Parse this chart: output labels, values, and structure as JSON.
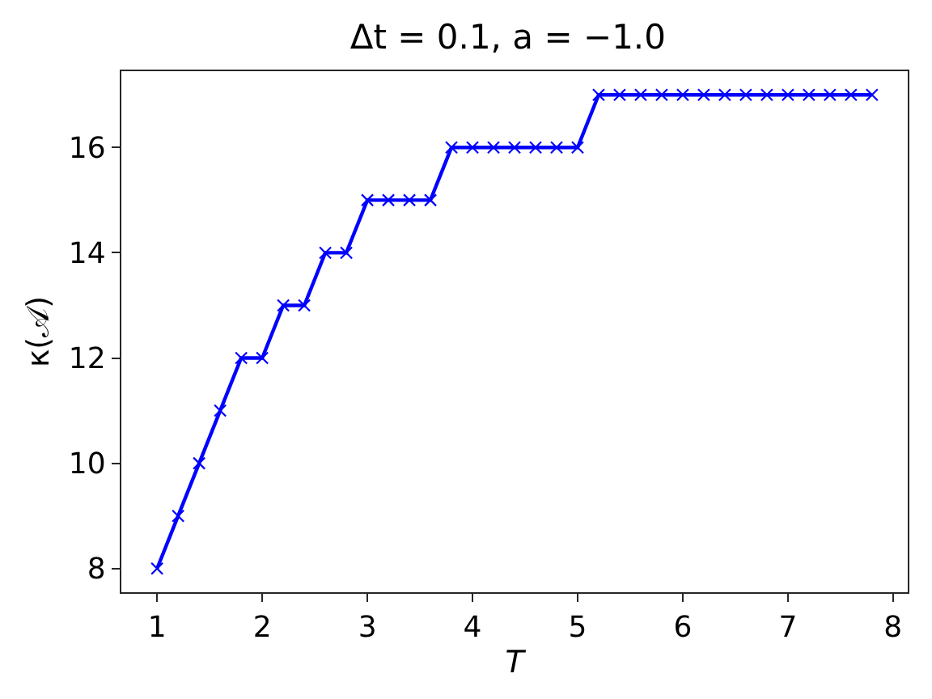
{
  "chart_data": {
    "type": "line",
    "title": "Δt = 0.1, a = −1.0",
    "xlabel": "T",
    "ylabel": "κ(𝒜)",
    "x": [
      1.0,
      1.2,
      1.4,
      1.6,
      1.8,
      2.0,
      2.2,
      2.4,
      2.6,
      2.8,
      3.0,
      3.2,
      3.4,
      3.6,
      3.8,
      4.0,
      4.2,
      4.4,
      4.6,
      4.8,
      5.0,
      5.2,
      5.4,
      5.6,
      5.8,
      6.0,
      6.2,
      6.4,
      6.6,
      6.8,
      7.0,
      7.2,
      7.4,
      7.6,
      7.8
    ],
    "series": [
      {
        "color": "#0000ff",
        "values": [
          8,
          9,
          10,
          11,
          12,
          12,
          13,
          13,
          14,
          14,
          15,
          15,
          15,
          15,
          16,
          16,
          16,
          16,
          16,
          16,
          16,
          17,
          17,
          17,
          17,
          17,
          17,
          17,
          17,
          17,
          17,
          17,
          17,
          17,
          17
        ]
      }
    ],
    "xlim": [
      0.66,
      8.14
    ],
    "xticks": [
      1,
      2,
      3,
      4,
      5,
      6,
      7,
      8
    ],
    "ylim": [
      7.55,
      17.45
    ],
    "yticks": [
      8,
      10,
      12,
      14,
      16
    ],
    "marker": "cross",
    "line_style": "solid"
  }
}
